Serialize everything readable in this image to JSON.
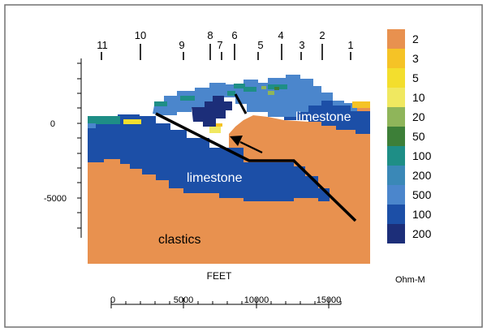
{
  "figure": {
    "station_labels": [
      "11",
      "10",
      "9",
      "8",
      "7",
      "6",
      "5",
      "4",
      "3",
      "2",
      "1"
    ],
    "depth_labels": [
      "0",
      "-5000"
    ],
    "horizontal_axis_label": "FEET",
    "distance_ticks": [
      "0",
      "5000",
      "10000",
      "15000"
    ],
    "region_labels": {
      "limestone_upper": "limestone",
      "limestone_lower": "limestone",
      "clastics": "clastics"
    },
    "legend": {
      "unit": "Ohm-M",
      "items": [
        {
          "label": "2",
          "color": "#e8914f"
        },
        {
          "label": "3",
          "color": "#f5c326"
        },
        {
          "label": "5",
          "color": "#f3de2d"
        },
        {
          "label": "10",
          "color": "#f0e860"
        },
        {
          "label": "20",
          "color": "#8fb55a"
        },
        {
          "label": "50",
          "color": "#3d7f38"
        },
        {
          "label": "100",
          "color": "#1e8e86"
        },
        {
          "label": "200",
          "color": "#3a88b7"
        },
        {
          "label": "500",
          "color": "#4b86cc"
        },
        {
          "label": "100",
          "color": "#1c4fa7"
        },
        {
          "label": "200",
          "color": "#1c2e79"
        }
      ]
    }
  }
}
